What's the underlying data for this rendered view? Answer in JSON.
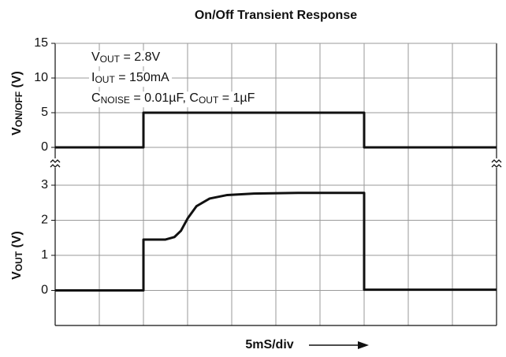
{
  "chart_data": {
    "type": "line",
    "title": "On/Off Transient Response",
    "x_label": "5mS/div",
    "annotations": [
      [
        "V",
        "OUT",
        " = 2.8V"
      ],
      [
        "I",
        "OUT",
        " = 150mA"
      ],
      [
        "C",
        "NOISE",
        " = 0.01µF, C",
        "OUT",
        " = 1µF"
      ]
    ],
    "xlim": [
      0,
      10
    ],
    "xticks": [
      0,
      1,
      2,
      3,
      4,
      5,
      6,
      7,
      8,
      9,
      10
    ],
    "panels": [
      {
        "y_label": [
          "V",
          "ON/OFF",
          " (V)"
        ],
        "ylim": [
          0,
          15
        ],
        "yticks": [
          0,
          5,
          10,
          15
        ],
        "series": [
          {
            "color": "#111111",
            "x": [
              0,
              2,
              2,
              7,
              7,
              10
            ],
            "values": [
              0,
              0,
              5,
              5,
              0,
              0
            ]
          }
        ]
      },
      {
        "y_label": [
          "V",
          "OUT",
          " (V)"
        ],
        "ylim": [
          -1,
          3
        ],
        "yticks": [
          0,
          1,
          2,
          3
        ],
        "series": [
          {
            "color": "#111111",
            "x": [
              0,
              2,
              2,
              2.5,
              2.7,
              2.85,
              3,
              3.2,
              3.5,
              3.9,
              4.5,
              5.5,
              7,
              7,
              10
            ],
            "values": [
              0,
              0,
              1.45,
              1.45,
              1.52,
              1.7,
              2.05,
              2.4,
              2.62,
              2.72,
              2.76,
              2.78,
              2.78,
              0.02,
              0.02
            ]
          }
        ]
      }
    ]
  }
}
